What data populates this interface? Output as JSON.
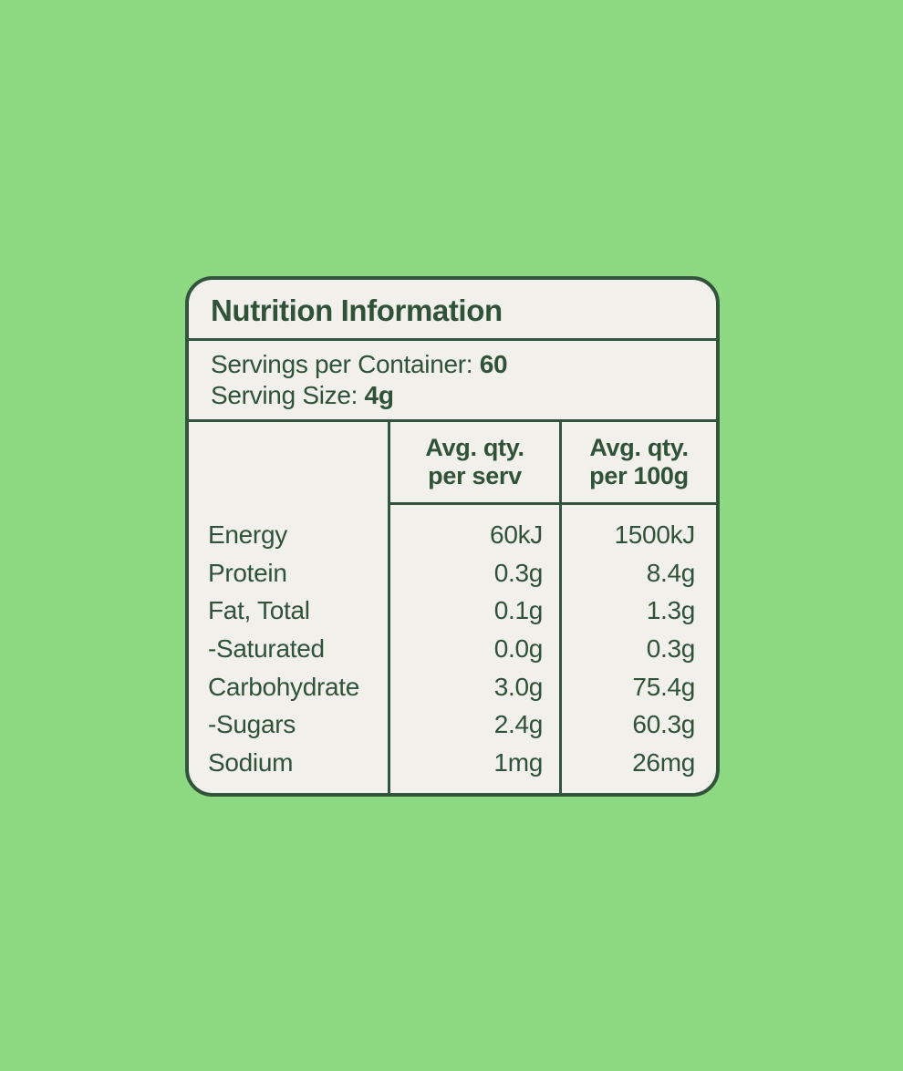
{
  "colors": {
    "page_background": "#8cd982",
    "panel_background": "#f2f0ea",
    "ink_dark_green": "#2f5239",
    "border_green": "#32533c"
  },
  "panel": {
    "title": "Nutrition Information",
    "servings": {
      "label": "Servings per Container: ",
      "value": "60"
    },
    "serving_size": {
      "label": "Serving Size: ",
      "value": "4g"
    },
    "table": {
      "columns": [
        {
          "line1": "Avg. qty.",
          "line2": "per serv"
        },
        {
          "line1": "Avg. qty.",
          "line2": "per 100g"
        }
      ],
      "rows": [
        {
          "label": "Energy",
          "per_serv": "60kJ",
          "per_100g": "1500kJ"
        },
        {
          "label": "Protein",
          "per_serv": "0.3g",
          "per_100g": "8.4g"
        },
        {
          "label": "Fat, Total",
          "per_serv": "0.1g",
          "per_100g": "1.3g"
        },
        {
          "label": "-Saturated",
          "per_serv": "0.0g",
          "per_100g": "0.3g"
        },
        {
          "label": "Carbohydrate",
          "per_serv": "3.0g",
          "per_100g": "75.4g"
        },
        {
          "label": "-Sugars",
          "per_serv": "2.4g",
          "per_100g": "60.3g"
        },
        {
          "label": "Sodium",
          "per_serv": "1mg",
          "per_100g": "26mg"
        }
      ]
    }
  },
  "chart_data": {
    "type": "table",
    "title": "Nutrition Information",
    "subtitle": "Servings per Container: 60; Serving Size: 4g",
    "columns": [
      "",
      "Avg. qty. per serv",
      "Avg. qty. per 100g"
    ],
    "rows": [
      [
        "Energy",
        "60kJ",
        "1500kJ"
      ],
      [
        "Protein",
        "0.3g",
        "8.4g"
      ],
      [
        "Fat, Total",
        "0.1g",
        "1.3g"
      ],
      [
        "-Saturated",
        "0.0g",
        "0.3g"
      ],
      [
        "Carbohydrate",
        "3.0g",
        "75.4g"
      ],
      [
        "-Sugars",
        "2.4g",
        "60.3g"
      ],
      [
        "Sodium",
        "1mg",
        "26mg"
      ]
    ]
  }
}
